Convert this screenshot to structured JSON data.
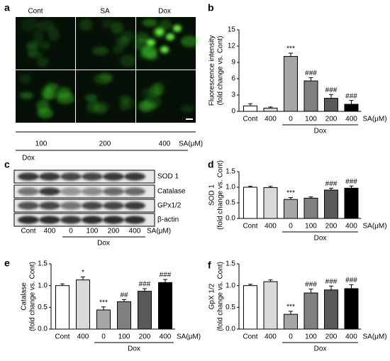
{
  "images": {
    "panel": "a",
    "columns": [
      "Cont",
      "SA",
      "Dox"
    ],
    "lanes": [
      "100",
      "200",
      "400"
    ],
    "unit_label": "SA(μM)",
    "group_label": "Dox"
  },
  "blot": {
    "panel": "c",
    "bands": [
      "SOD 1",
      "Catalase",
      "GPx1/2",
      "β-actin"
    ],
    "lanes": [
      "Cont",
      "400",
      "0",
      "100",
      "200",
      "400"
    ],
    "unit_label": "SA(μM)",
    "group_label": "Dox"
  },
  "chart_data": [
    {
      "type": "bar",
      "panel": "b",
      "ylabel": [
        "Fluorescence intensity",
        "(fold change vs. Cont)"
      ],
      "categories": [
        "Cont",
        "400",
        "0",
        "100",
        "200",
        "400"
      ],
      "unit_label": "SA(μM)",
      "group_label": "Dox",
      "values": [
        1.0,
        0.6,
        10.1,
        5.6,
        2.4,
        1.3
      ],
      "errors": [
        0.4,
        0.2,
        0.6,
        0.6,
        0.7,
        0.7
      ],
      "annotations": [
        null,
        null,
        "***",
        "###",
        "###",
        "###"
      ],
      "colors": [
        "#ffffff",
        "#d9d9d9",
        "#a6a6a6",
        "#808080",
        "#595959",
        "#000000"
      ],
      "ylim": [
        0,
        15
      ],
      "yticks": [
        0,
        3,
        6,
        9,
        12,
        15
      ]
    },
    {
      "type": "bar",
      "panel": "d",
      "ylabel": [
        "SOD 1",
        "(fold change vs. Cont)"
      ],
      "categories": [
        "Cont",
        "400",
        "0",
        "100",
        "200",
        "400"
      ],
      "unit_label": "SA(μM)",
      "group_label": "Dox",
      "values": [
        1.0,
        0.99,
        0.61,
        0.65,
        0.91,
        0.97
      ],
      "errors": [
        0.03,
        0.04,
        0.06,
        0.04,
        0.06,
        0.07
      ],
      "annotations": [
        null,
        null,
        "***",
        null,
        "###",
        "###"
      ],
      "colors": [
        "#ffffff",
        "#d9d9d9",
        "#a6a6a6",
        "#808080",
        "#595959",
        "#000000"
      ],
      "ylim": [
        0,
        1.5
      ],
      "yticks": [
        {
          "value": 0,
          "label": "0.0"
        },
        {
          "value": 0.5,
          "label": "0.5"
        },
        {
          "value": 1,
          "label": "1.0"
        },
        {
          "value": 1.5,
          "label": "1.5"
        }
      ]
    },
    {
      "type": "bar",
      "panel": "e",
      "ylabel": [
        "Catalase",
        "(fold change vs. Cont)"
      ],
      "categories": [
        "Cont",
        "400",
        "0",
        "100",
        "200",
        "400"
      ],
      "unit_label": "SA(μM)",
      "group_label": "Dox",
      "values": [
        1.0,
        1.13,
        0.44,
        0.63,
        0.87,
        1.07
      ],
      "errors": [
        0.04,
        0.07,
        0.07,
        0.05,
        0.06,
        0.07
      ],
      "annotations": [
        null,
        "*",
        "***",
        "##",
        "###",
        "###"
      ],
      "colors": [
        "#ffffff",
        "#d9d9d9",
        "#a6a6a6",
        "#808080",
        "#595959",
        "#000000"
      ],
      "ylim": [
        0,
        1.5
      ],
      "yticks": [
        {
          "value": 0,
          "label": "0.0"
        },
        {
          "value": 0.5,
          "label": "0.5"
        },
        {
          "value": 1,
          "label": "1.0"
        },
        {
          "value": 1.5,
          "label": "1.5"
        }
      ]
    },
    {
      "type": "bar",
      "panel": "f",
      "ylabel": [
        "GpX 1/2",
        "(fold change vs. Cont)"
      ],
      "categories": [
        "Cont",
        "400",
        "0",
        "100",
        "200",
        "400"
      ],
      "unit_label": "SA(μM)",
      "group_label": "Dox",
      "values": [
        1.0,
        1.09,
        0.34,
        0.83,
        0.9,
        0.93
      ],
      "errors": [
        0.03,
        0.04,
        0.07,
        0.09,
        0.09,
        0.09
      ],
      "annotations": [
        null,
        null,
        "***",
        "###",
        "###",
        "###"
      ],
      "colors": [
        "#ffffff",
        "#d9d9d9",
        "#a6a6a6",
        "#808080",
        "#595959",
        "#000000"
      ],
      "ylim": [
        0,
        1.5
      ],
      "yticks": [
        {
          "value": 0,
          "label": "0.0"
        },
        {
          "value": 0.5,
          "label": "0.5"
        },
        {
          "value": 1,
          "label": "1.0"
        },
        {
          "value": 1.5,
          "label": "1.5"
        }
      ]
    }
  ]
}
